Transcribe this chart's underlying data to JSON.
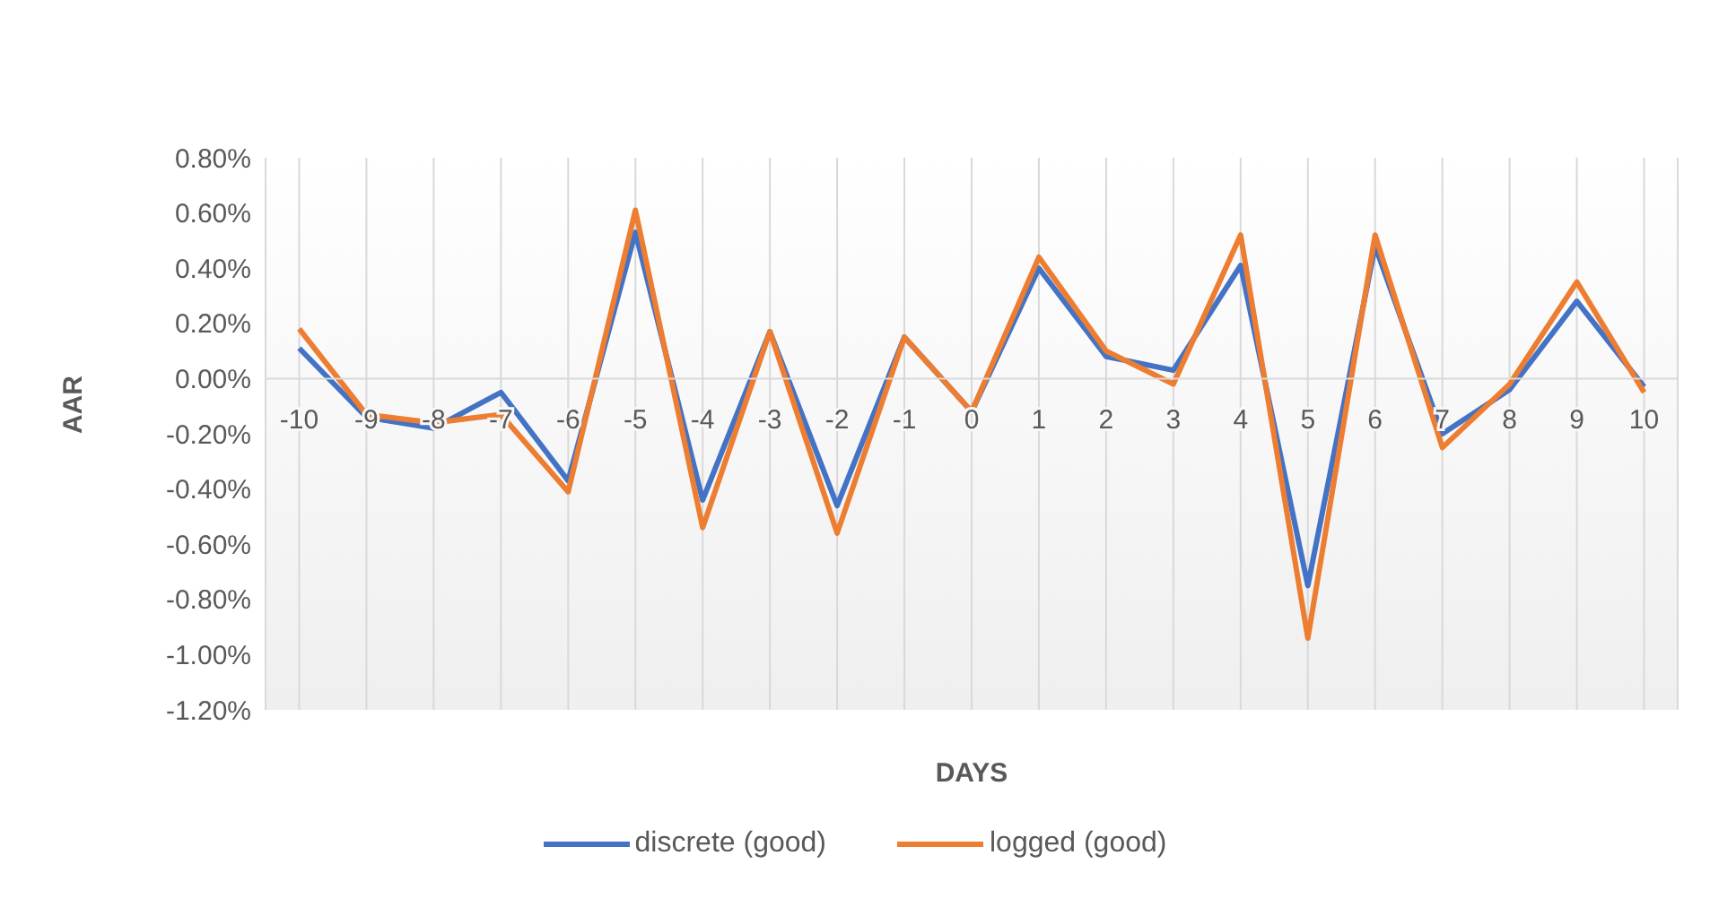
{
  "chart_data": {
    "type": "line",
    "xlabel": "DAYS",
    "ylabel": "AAR",
    "categories": [
      "-10",
      "-9",
      "-8",
      "-7",
      "-6",
      "-5",
      "-4",
      "-3",
      "-2",
      "-1",
      "0",
      "1",
      "2",
      "3",
      "4",
      "5",
      "6",
      "7",
      "8",
      "9",
      "10"
    ],
    "series": [
      {
        "name": "discrete (good)",
        "color": "#4472c4",
        "values": [
          0.11,
          -0.14,
          -0.18,
          -0.05,
          -0.37,
          0.53,
          -0.44,
          0.17,
          -0.46,
          0.15,
          -0.12,
          0.4,
          0.08,
          0.03,
          0.41,
          -0.75,
          0.48,
          -0.2,
          -0.04,
          0.28,
          -0.03
        ]
      },
      {
        "name": "logged (good)",
        "color": "#ed7d31",
        "values": [
          0.18,
          -0.13,
          -0.16,
          -0.13,
          -0.41,
          0.61,
          -0.54,
          0.17,
          -0.56,
          0.15,
          -0.12,
          0.44,
          0.1,
          -0.02,
          0.52,
          -0.94,
          0.52,
          -0.25,
          -0.02,
          0.35,
          -0.05
        ]
      }
    ],
    "ylim": [
      -1.2,
      0.8
    ],
    "yticks": [
      {
        "value": -1.2,
        "label": "-1.20%"
      },
      {
        "value": -1.0,
        "label": "-1.00%"
      },
      {
        "value": -0.8,
        "label": "-0.80%"
      },
      {
        "value": -0.6,
        "label": "-0.60%"
      },
      {
        "value": -0.4,
        "label": "-0.40%"
      },
      {
        "value": -0.2,
        "label": "-0.20%"
      },
      {
        "value": 0,
        "label": "0.00%"
      },
      {
        "value": 0.2,
        "label": "0.20%"
      },
      {
        "value": 0.4,
        "label": "0.40%"
      },
      {
        "value": 0.6,
        "label": "0.60%"
      },
      {
        "value": 0.8,
        "label": "0.80%"
      }
    ],
    "grid": "x",
    "legend": "bottom"
  }
}
